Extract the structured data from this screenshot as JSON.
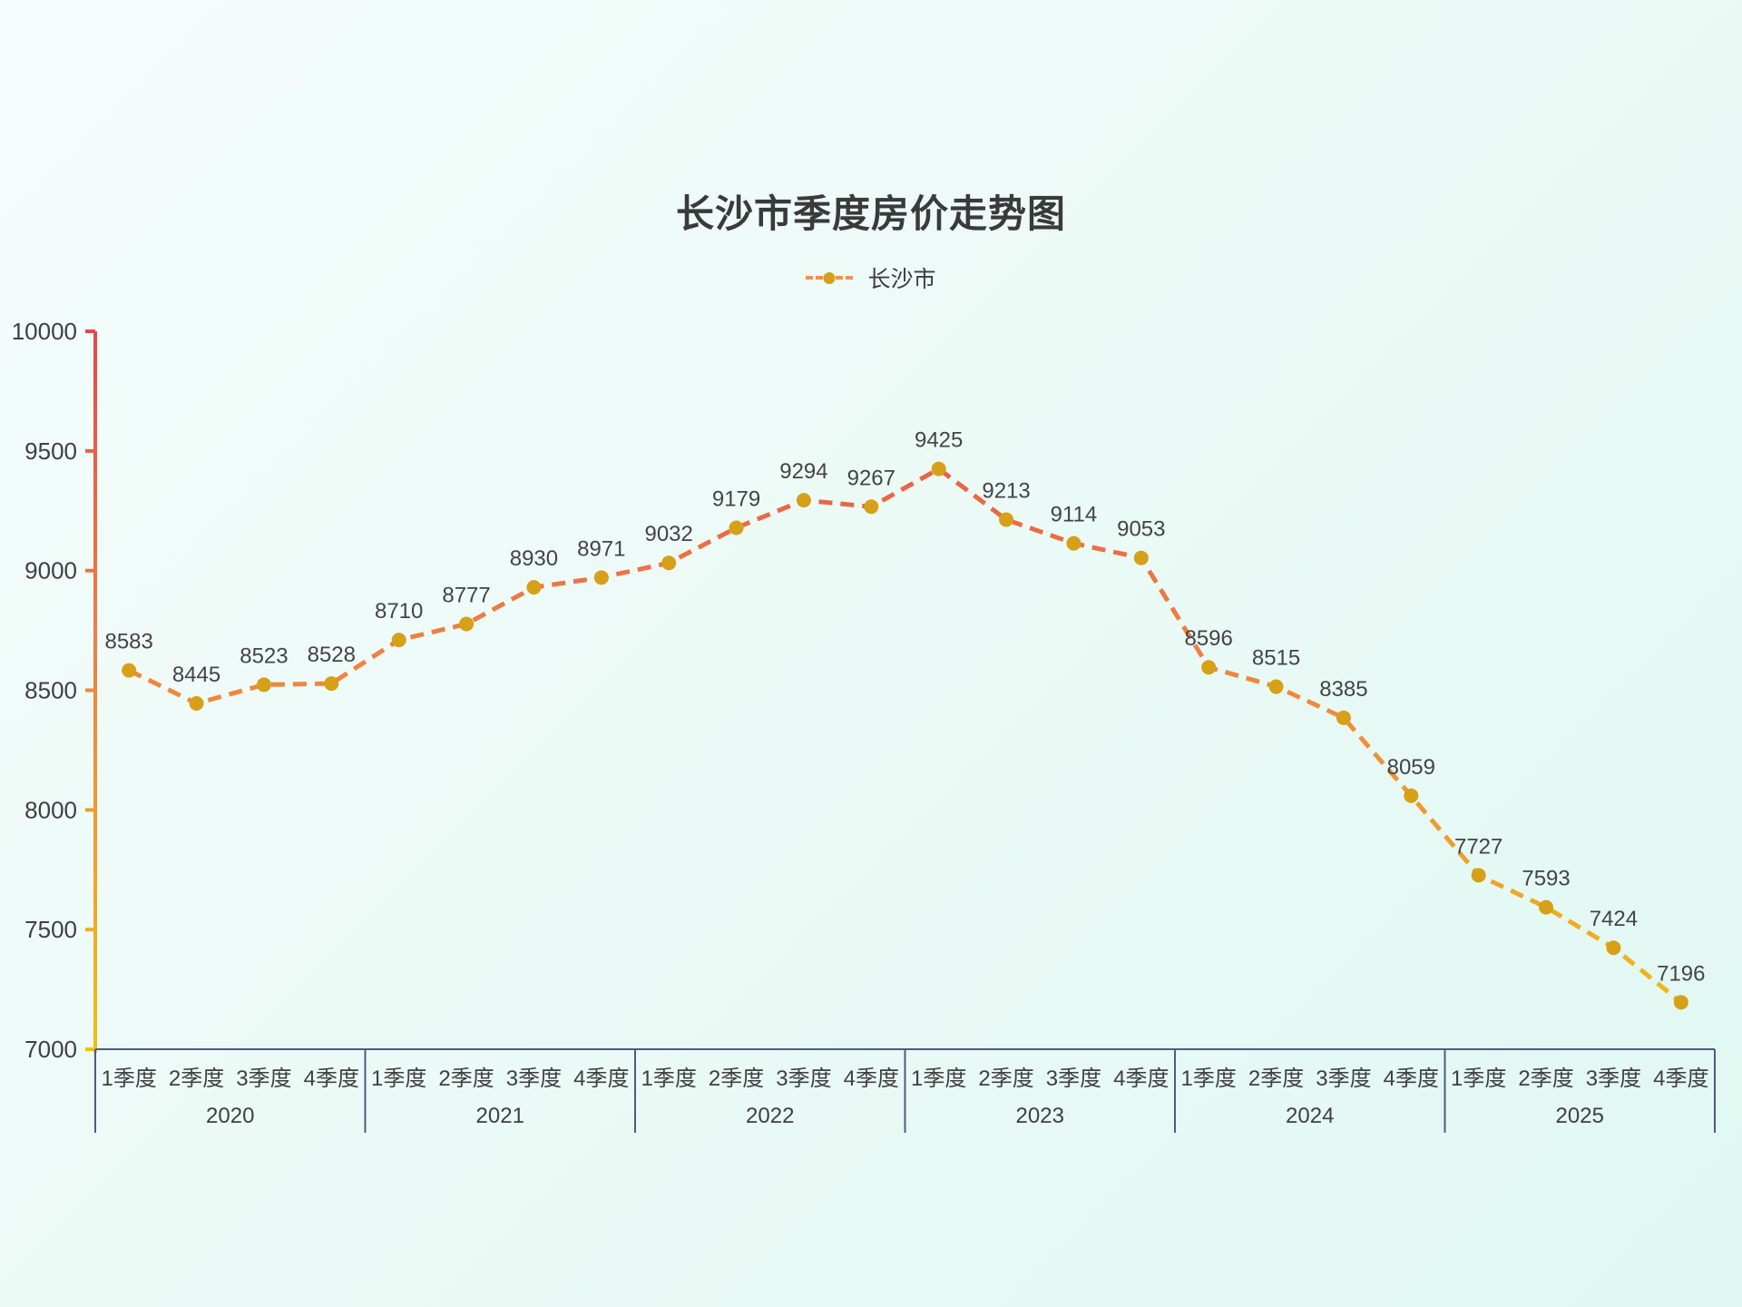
{
  "title": "长沙市季度房价走势图",
  "legend": {
    "label": "长沙市"
  },
  "chart_data": {
    "type": "line",
    "title": "长沙市季度房价走势图",
    "series": [
      {
        "name": "长沙市",
        "values": [
          8583,
          8445,
          8523,
          8528,
          8710,
          8777,
          8930,
          8971,
          9032,
          9179,
          9294,
          9267,
          9425,
          9213,
          9114,
          9053,
          8596,
          8515,
          8385,
          8059,
          7727,
          7593,
          7424,
          7196
        ]
      }
    ],
    "years": [
      "2020",
      "2021",
      "2022",
      "2023",
      "2024",
      "2025"
    ],
    "quarter_labels": [
      "1季度",
      "2季度",
      "3季度",
      "4季度"
    ],
    "yticks": [
      7000,
      7500,
      8000,
      8500,
      9000,
      9500,
      10000
    ],
    "ylim": [
      7000,
      10000
    ],
    "grid": false,
    "line_style": "dashed",
    "legend_position": "top",
    "colors": {
      "line_gradient_top": "#e64848",
      "line_gradient_mid": "#f08142",
      "line_gradient_bottom": "#edc013",
      "point_fill": "#d6a019",
      "value_label": "#444444",
      "axis_tick_label": "#404040",
      "x_axis_line": "#4e5b86",
      "background_start": "#f5fdfc",
      "background_end": "#e0f8f2"
    }
  }
}
